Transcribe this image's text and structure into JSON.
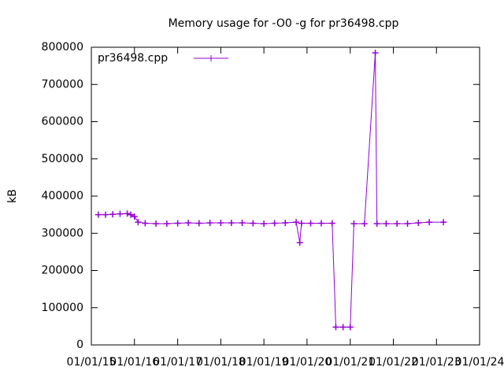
{
  "chart_data": {
    "type": "line",
    "title": "Memory usage for -O0 -g for pr36498.cpp",
    "y_label": "kB",
    "x": [
      "2015-03-01",
      "2015-05-01",
      "2015-07-01",
      "2015-09-01",
      "2015-11-01",
      "2015-12-01",
      "2016-01-01",
      "2016-02-01",
      "2016-04-01",
      "2016-07-01",
      "2016-10-01",
      "2017-01-01",
      "2017-04-01",
      "2017-07-01",
      "2017-10-01",
      "2018-01-01",
      "2018-04-01",
      "2018-07-01",
      "2018-10-01",
      "2019-01-01",
      "2019-04-01",
      "2019-07-01",
      "2019-10-01",
      "2019-11-01",
      "2019-11-15",
      "2020-02-01",
      "2020-05-01",
      "2020-08-01",
      "2020-09-01",
      "2020-11-01",
      "2021-01-01",
      "2021-02-01",
      "2021-05-01",
      "2021-08-01",
      "2021-08-15",
      "2021-11-01",
      "2022-02-01",
      "2022-05-01",
      "2022-08-01",
      "2022-11-01",
      "2023-03-01"
    ],
    "series": [
      {
        "name": "pr36498.cpp",
        "color": "#9400d3",
        "values": [
          350000,
          350000,
          351000,
          352000,
          353000,
          350000,
          345000,
          330000,
          327000,
          326000,
          326000,
          327000,
          328000,
          327000,
          328000,
          328000,
          328000,
          328000,
          327000,
          326000,
          327000,
          328000,
          330000,
          275000,
          327000,
          327000,
          327000,
          327000,
          48000,
          48000,
          48000,
          326000,
          326000,
          785000,
          326000,
          326000,
          326000,
          326000,
          328000,
          330000,
          330000
        ]
      }
    ],
    "xlim": [
      "2015-01-01",
      "2024-01-01"
    ],
    "xticks": [
      {
        "value": "2015-01-01",
        "label": "01/01/15"
      },
      {
        "value": "2016-01-01",
        "label": "01/01/16"
      },
      {
        "value": "2017-01-01",
        "label": "01/01/17"
      },
      {
        "value": "2018-01-01",
        "label": "01/01/18"
      },
      {
        "value": "2019-01-01",
        "label": "01/01/19"
      },
      {
        "value": "2020-01-01",
        "label": "01/01/20"
      },
      {
        "value": "2021-01-01",
        "label": "01/01/21"
      },
      {
        "value": "2022-01-01",
        "label": "01/01/22"
      },
      {
        "value": "2023-01-01",
        "label": "01/01/23"
      },
      {
        "value": "2024-01-01",
        "label": "01/01/24"
      }
    ],
    "ylim": [
      0,
      800000
    ],
    "yticks": [
      0,
      100000,
      200000,
      300000,
      400000,
      500000,
      600000,
      700000,
      800000
    ],
    "legend": "top-left"
  }
}
